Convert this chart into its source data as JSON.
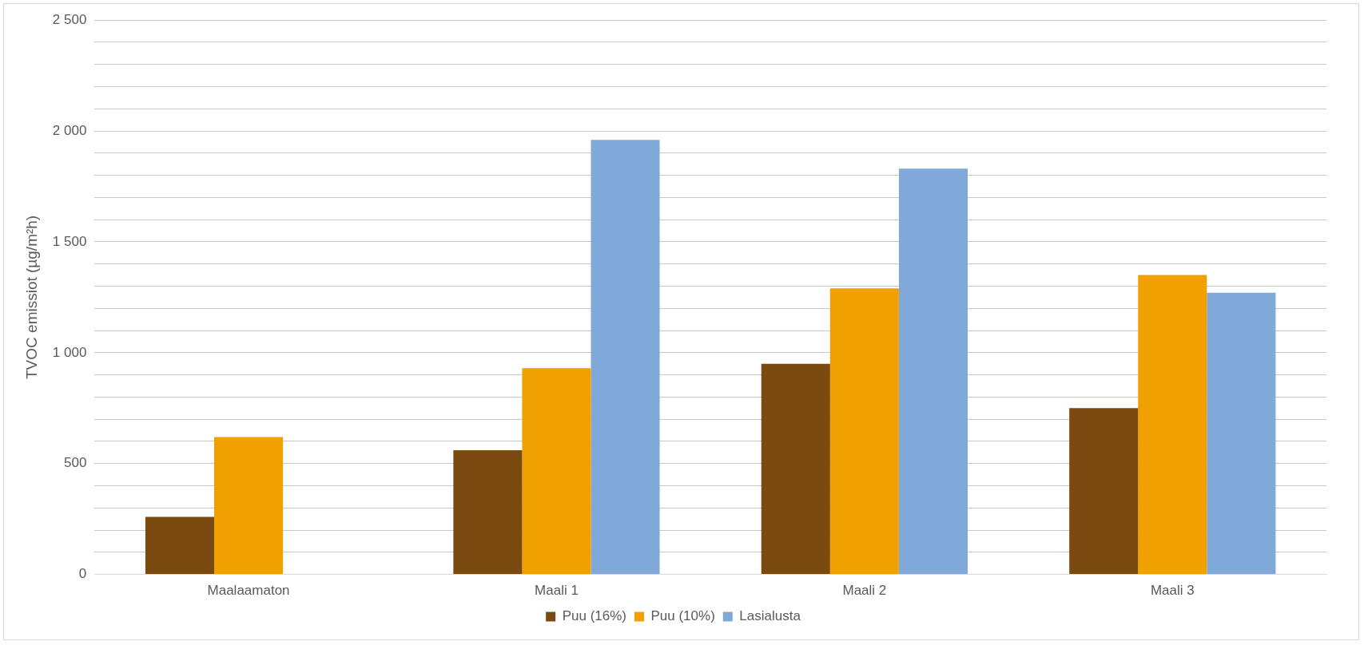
{
  "chart_data": {
    "type": "bar",
    "ylabel": "TVOC emissiot (µg/m²h)",
    "categories": [
      "Maalaamaton",
      "Maali 1",
      "Maali 2",
      "Maali 3"
    ],
    "series": [
      {
        "name": "Puu (16%)",
        "color": "#7a4a10",
        "values": [
          260,
          560,
          950,
          750
        ]
      },
      {
        "name": "Puu (10%)",
        "color": "#f0a000",
        "values": [
          620,
          930,
          1290,
          1350
        ]
      },
      {
        "name": "Lasialusta",
        "color": "#80a8d8",
        "values": [
          null,
          1960,
          1830,
          1270
        ]
      }
    ],
    "ylim": [
      0,
      2500
    ],
    "yticks": [
      0,
      {
        "value": 100,
        "label": null
      },
      {
        "value": 200,
        "label": null
      },
      {
        "value": 300,
        "label": null
      },
      {
        "value": 400,
        "label": null
      },
      500,
      {
        "value": 600,
        "label": null
      },
      {
        "value": 700,
        "label": null
      },
      {
        "value": 800,
        "label": null
      },
      {
        "value": 900,
        "label": null
      },
      {
        "value": 1000,
        "label": "1 000"
      },
      {
        "value": 1100,
        "label": null
      },
      {
        "value": 1200,
        "label": null
      },
      {
        "value": 1300,
        "label": null
      },
      {
        "value": 1400,
        "label": null
      },
      {
        "value": 1500,
        "label": "1 500"
      },
      {
        "value": 1600,
        "label": null
      },
      {
        "value": 1700,
        "label": null
      },
      {
        "value": 1800,
        "label": null
      },
      {
        "value": 1900,
        "label": null
      },
      {
        "value": 2000,
        "label": "2 000"
      },
      {
        "value": 2100,
        "label": null
      },
      {
        "value": 2200,
        "label": null
      },
      {
        "value": 2300,
        "label": null
      },
      {
        "value": 2400,
        "label": null
      },
      {
        "value": 2500,
        "label": "2 500"
      }
    ],
    "grid": "y",
    "legend": "bottom"
  }
}
